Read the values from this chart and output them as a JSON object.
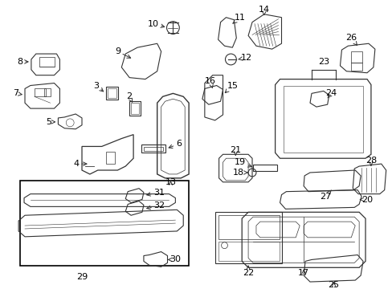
{
  "figsize": [
    4.89,
    3.6
  ],
  "dpi": 100,
  "background_color": "#ffffff",
  "line_color": "#333333",
  "text_color": "#000000"
}
